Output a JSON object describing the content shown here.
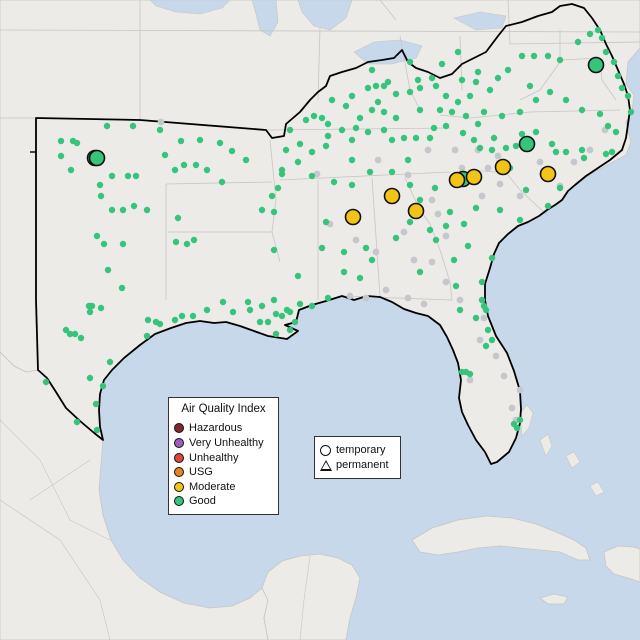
{
  "legend_aqi": {
    "title": "Air Quality Index",
    "items": [
      {
        "label": "Hazardous",
        "color": "#7e2a2a"
      },
      {
        "label": "Very Unhealthy",
        "color": "#9c5cc0"
      },
      {
        "label": "Unhealthy",
        "color": "#e0443a"
      },
      {
        "label": "USG",
        "color": "#e8811f"
      },
      {
        "label": "Moderate",
        "color": "#f2c418"
      },
      {
        "label": "Good",
        "color": "#34c47a"
      }
    ]
  },
  "legend_type": {
    "items": [
      {
        "label": "temporary",
        "shape": "circle"
      },
      {
        "label": "permanent",
        "shape": "triangle"
      }
    ]
  },
  "colors": {
    "water": "#c6d8ea",
    "land": "#ecebe8",
    "border": "#c8c5c3",
    "region_outline": "#000000",
    "good": "#34c47a",
    "moderate": "#f2c418",
    "nodata": "#c4c7cc"
  },
  "monitor_groups": [
    {
      "aqi": "Good",
      "type": "temporary",
      "count": 259
    },
    {
      "aqi": "Moderate",
      "type": "temporary",
      "count": 7
    },
    {
      "aqi": "none",
      "type": "temporary",
      "count": 42
    }
  ]
}
